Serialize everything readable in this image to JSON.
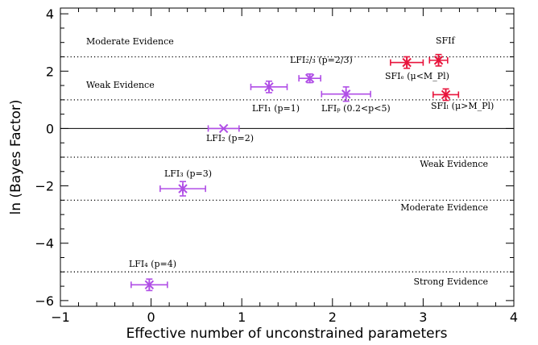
{
  "chart_data": {
    "type": "scatter",
    "title": "",
    "xlabel": "Effective number of unconstrained parameters",
    "ylabel": "ln (Bayes Factor)",
    "xlim": [
      -1,
      4
    ],
    "ylim": [
      -6.2,
      4.2
    ],
    "x_ticks": [
      -1,
      0,
      1,
      2,
      3,
      4
    ],
    "y_ticks": [
      -6,
      -4,
      -2,
      0,
      2,
      4
    ],
    "reference_lines": [
      {
        "y": 2.5,
        "style": "dotted",
        "label": "Moderate Evidence"
      },
      {
        "y": 1.0,
        "style": "dotted",
        "label": "Weak Evidence"
      },
      {
        "y": 0.0,
        "style": "solid",
        "label": ""
      },
      {
        "y": -1.0,
        "style": "dotted",
        "label": "Weak Evidence"
      },
      {
        "y": -2.5,
        "style": "dotted",
        "label": "Moderate Evidence"
      },
      {
        "y": -5.0,
        "style": "dotted",
        "label": "Strong Evidence"
      }
    ],
    "points": [
      {
        "label": "LFI₂/₃ (p=2/3)",
        "x": 1.75,
        "y": 1.75,
        "xerr": 0.12,
        "yerr": 0.15,
        "color": "#b04ee6",
        "marker": "star"
      },
      {
        "label": "LFI₁ (p=1)",
        "x": 1.3,
        "y": 1.45,
        "xerr": 0.2,
        "yerr": 0.2,
        "color": "#b04ee6",
        "marker": "star"
      },
      {
        "label": "LFIₚ (0.2<p<5)",
        "x": 2.15,
        "y": 1.2,
        "xerr": 0.27,
        "yerr": 0.25,
        "color": "#b04ee6",
        "marker": "star"
      },
      {
        "label": "LFI₂ (p=2)",
        "x": 0.8,
        "y": 0.0,
        "xerr": 0.17,
        "yerr": 0.0,
        "color": "#b04ee6",
        "marker": "cross"
      },
      {
        "label": "LFI₃ (p=3)",
        "x": 0.35,
        "y": -2.1,
        "xerr": 0.25,
        "yerr": 0.25,
        "color": "#b04ee6",
        "marker": "star"
      },
      {
        "label": "LFI₄ (p=4)",
        "x": -0.02,
        "y": -5.45,
        "xerr": 0.2,
        "yerr": 0.2,
        "color": "#b04ee6",
        "marker": "star"
      },
      {
        "label": "SFIₑ (μ<M_Pl)",
        "x": 2.82,
        "y": 2.3,
        "xerr": 0.18,
        "yerr": 0.2,
        "color": "#e8143c",
        "marker": "star"
      },
      {
        "label": "SFIf",
        "x": 3.17,
        "y": 2.38,
        "xerr": 0.1,
        "yerr": 0.2,
        "color": "#e8143c",
        "marker": "star"
      },
      {
        "label": "SFIₗ (μ>M_Pl)",
        "x": 3.25,
        "y": 1.18,
        "xerr": 0.14,
        "yerr": 0.2,
        "color": "#e8143c",
        "marker": "star"
      }
    ]
  }
}
